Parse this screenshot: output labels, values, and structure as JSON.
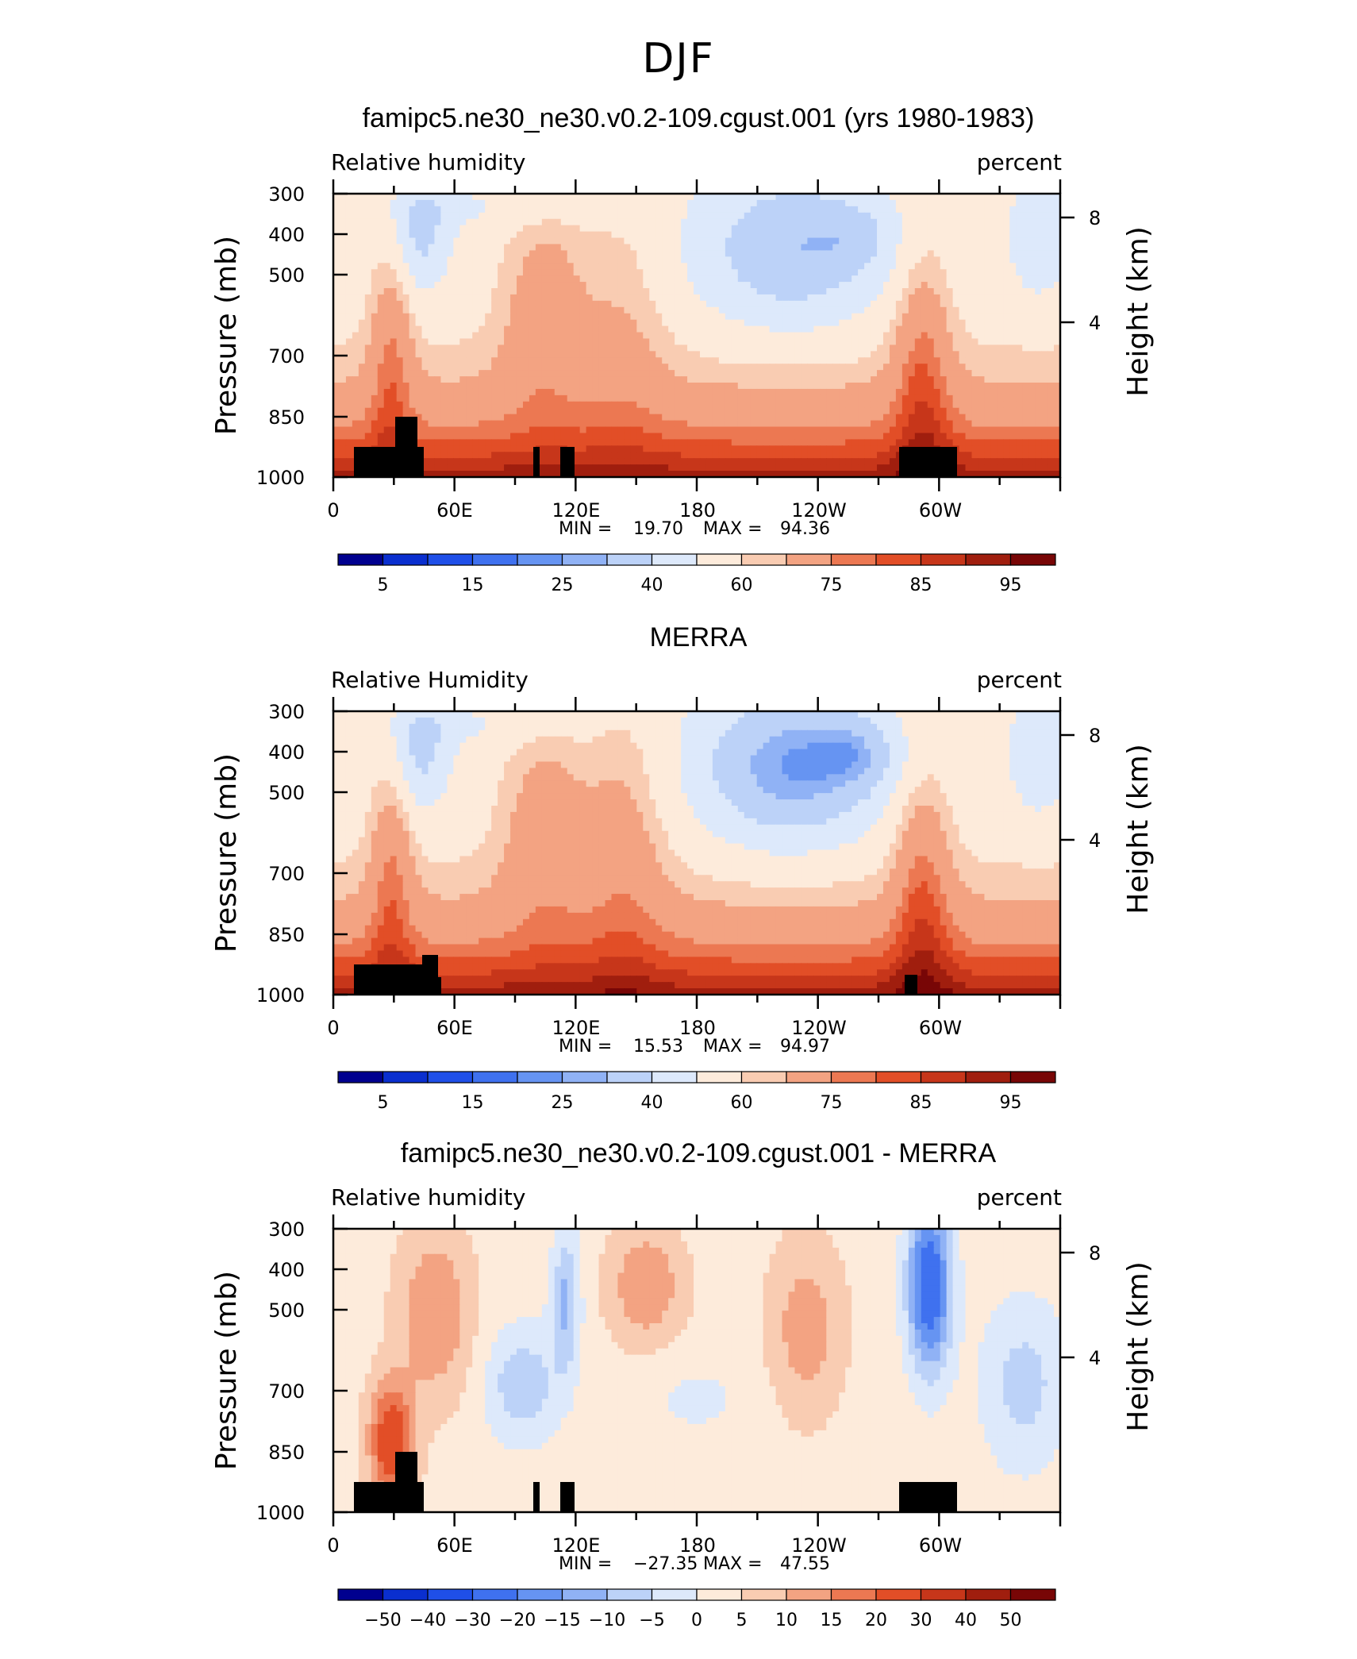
{
  "page": {
    "title": "DJF",
    "season_colors": {
      "rh": [
        "#00008f",
        "#0a2fcf",
        "#1f4fe8",
        "#3f71ef",
        "#6694f2",
        "#90b2f5",
        "#bcd2f8",
        "#dde9fb",
        "#fdebdb",
        "#f9ccb2",
        "#f3a382",
        "#ec7852",
        "#e24e27",
        "#c7361a",
        "#a01e0e",
        "#780606"
      ],
      "diff": [
        "#00008f",
        "#0a2fcf",
        "#1f4fe8",
        "#3f71ef",
        "#6694f2",
        "#90b2f5",
        "#bcd2f8",
        "#dde9fb",
        "#fdebdb",
        "#f9ccb2",
        "#f3a382",
        "#ec7852",
        "#e24e27",
        "#c7361a",
        "#a01e0e",
        "#780606"
      ]
    }
  },
  "chart_data": [
    {
      "type": "heatmap",
      "title": "famipc5.ne30_ne30.v0.2-109.cgust.001 (yrs 1980-1983)",
      "left_label": "Relative humidity",
      "right_label": "percent",
      "ylabel": "Pressure (mb)",
      "y2label": "Height (km)",
      "xticks": [
        "0",
        "60E",
        "120E",
        "180",
        "120W",
        "60W"
      ],
      "yticks": [
        "300",
        "400",
        "500",
        "700",
        "850",
        "1000"
      ],
      "y2ticks": [
        "8",
        "4"
      ],
      "min_label": "MIN =",
      "min_value": "19.70",
      "max_label": "MAX =",
      "max_value": "94.36",
      "colorbar_labels": [
        "5",
        "15",
        "25",
        "40",
        "60",
        "75",
        "85",
        "95"
      ],
      "palette": "rh",
      "x_range": [
        0,
        360
      ],
      "y_range": [
        300,
        1000
      ]
    },
    {
      "type": "heatmap",
      "title": "MERRA",
      "left_label": "Relative Humidity",
      "right_label": "percent",
      "ylabel": "Pressure (mb)",
      "y2label": "Height (km)",
      "xticks": [
        "0",
        "60E",
        "120E",
        "180",
        "120W",
        "60W"
      ],
      "yticks": [
        "300",
        "400",
        "500",
        "700",
        "850",
        "1000"
      ],
      "y2ticks": [
        "8",
        "4"
      ],
      "min_label": "MIN =",
      "min_value": "15.53",
      "max_label": "MAX =",
      "max_value": "94.97",
      "colorbar_labels": [
        "5",
        "15",
        "25",
        "40",
        "60",
        "75",
        "85",
        "95"
      ],
      "palette": "rh",
      "x_range": [
        0,
        360
      ],
      "y_range": [
        300,
        1000
      ]
    },
    {
      "type": "heatmap",
      "title": "famipc5.ne30_ne30.v0.2-109.cgust.001 - MERRA",
      "left_label": "Relative humidity",
      "right_label": "percent",
      "ylabel": "Pressure (mb)",
      "y2label": "Height (km)",
      "xticks": [
        "0",
        "60E",
        "120E",
        "180",
        "120W",
        "60W"
      ],
      "yticks": [
        "300",
        "400",
        "500",
        "700",
        "850",
        "1000"
      ],
      "y2ticks": [
        "8",
        "4"
      ],
      "min_label": "MIN =",
      "min_value": "−27.35",
      "max_label": "MAX =",
      "max_value": "47.55",
      "colorbar_labels": [
        "−50",
        "−40",
        "−30",
        "−20",
        "−15",
        "−10",
        "−5",
        "0",
        "5",
        "10",
        "15",
        "20",
        "30",
        "40",
        "50"
      ],
      "palette": "diff",
      "x_range": [
        0,
        360
      ],
      "y_range": [
        300,
        1000
      ]
    }
  ]
}
